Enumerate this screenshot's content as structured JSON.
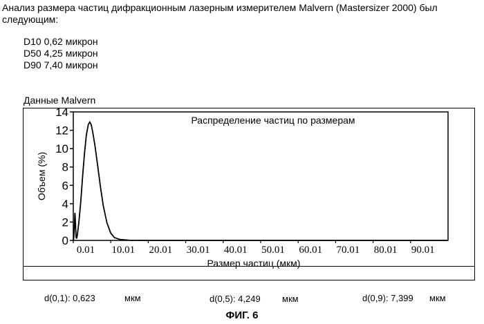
{
  "intro_text": "Анализ размера частиц дифракционным лазерным измерителем Malvern (Mastersizer 2000) был следующим:",
  "d_values": [
    "D10 0,62 микрон",
    "D50 4,25 микрон",
    "D90 7,40 микрон"
  ],
  "panel_label": "Данные Malvern",
  "results": {
    "d01_label": "d(0,1): 0,623",
    "d01_unit": "мкм",
    "d05_label": "d(0,5): 4,249",
    "d05_unit": "мкм",
    "d09_label": "d(0,9): 7,399",
    "d09_unit": "мкм"
  },
  "figure_caption": "ФИГ. 6",
  "chart_data": {
    "type": "line",
    "title": "Распределение частиц по размерам",
    "xlabel": "Размер частиц (мкм)",
    "ylabel": "Объем (%)",
    "xlim": [
      0.01,
      100.01
    ],
    "ylim": [
      0,
      14
    ],
    "x_ticks": [
      0.01,
      10.01,
      20.01,
      30.01,
      40.01,
      50.01,
      60.01,
      70.01,
      80.01,
      90.01
    ],
    "x_tick_labels": [
      "0.01",
      "10.01",
      "20.01",
      "30.01",
      "40.01",
      "50.01",
      "60.01",
      "70.01",
      "80.01",
      "90.01"
    ],
    "y_ticks": [
      0,
      2,
      4,
      6,
      8,
      10,
      12,
      14
    ],
    "y_tick_labels": [
      "0",
      "2",
      "4",
      "6",
      "8",
      "10",
      "12",
      "14"
    ],
    "grid": false,
    "series": [
      {
        "values": [
          [
            0.01,
            0
          ],
          [
            0.15,
            0.3
          ],
          [
            0.3,
            1.5
          ],
          [
            0.45,
            3.0
          ],
          [
            0.6,
            1.8
          ],
          [
            0.75,
            0.4
          ],
          [
            0.9,
            0.2
          ],
          [
            1.1,
            0.6
          ],
          [
            1.5,
            2.0
          ],
          [
            2.0,
            4.2
          ],
          [
            2.5,
            7.0
          ],
          [
            3.0,
            9.5
          ],
          [
            3.5,
            11.5
          ],
          [
            4.0,
            12.6
          ],
          [
            4.4,
            12.9
          ],
          [
            4.8,
            12.6
          ],
          [
            5.2,
            11.8
          ],
          [
            5.8,
            10.3
          ],
          [
            6.5,
            8.2
          ],
          [
            7.2,
            6.0
          ],
          [
            8.0,
            3.8
          ],
          [
            9.0,
            1.9
          ],
          [
            10.0,
            0.8
          ],
          [
            11.0,
            0.3
          ],
          [
            12.5,
            0.1
          ],
          [
            15.0,
            0.02
          ],
          [
            20.0,
            0
          ],
          [
            100.01,
            0
          ]
        ]
      }
    ]
  }
}
